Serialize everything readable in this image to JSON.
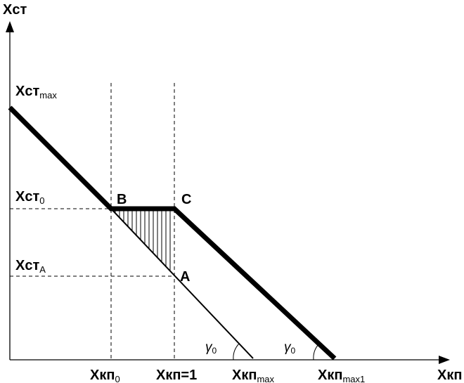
{
  "axes": {
    "y_label": "Хст",
    "x_label": "Хкп"
  },
  "y_ticks": {
    "max": {
      "main": "Хст",
      "sub": "max"
    },
    "zero": {
      "main": "Хст",
      "sub": "0"
    },
    "a": {
      "main": "Хст",
      "sub": "A"
    }
  },
  "x_ticks": {
    "zero": {
      "main": "Хкп",
      "sub": "0"
    },
    "one": {
      "main": "Хкп=1"
    },
    "max": {
      "main": "Хкп",
      "sub": "max"
    },
    "max1": {
      "main": "Хкп",
      "sub": "max1"
    }
  },
  "points": {
    "a": "A",
    "b": "B",
    "c": "C"
  },
  "angles": {
    "left": {
      "main": "γ",
      "sub": "0"
    },
    "right": {
      "main": "γ",
      "sub": "0"
    }
  },
  "colors": {
    "line": "#000000",
    "guide": "#000000",
    "background": "#ffffff"
  }
}
